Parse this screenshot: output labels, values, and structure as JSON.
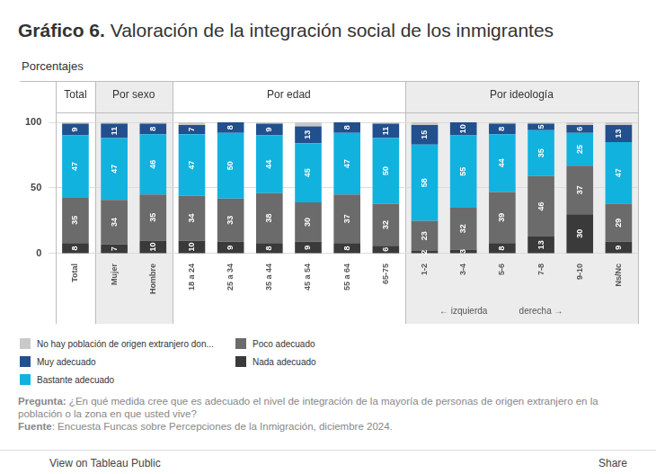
{
  "chart_data": {
    "type": "bar",
    "title": "Gráfico 6. Valoración de la integración social de los inmigrantes",
    "subtitle": "Porcentajes",
    "stacked": true,
    "data_labels": true,
    "grid": true,
    "legend": "bottom-left",
    "categories": [
      "Total",
      "Mujer",
      "Hombre",
      "18 a 24",
      "25 a 34",
      "35 a 44",
      "45 a 54",
      "55 a 64",
      "65-75",
      "1-2",
      "3-4",
      "5-6",
      "7-8",
      "9-10",
      "Ns/Nc"
    ],
    "groups": [
      {
        "name": "Total",
        "categories": [
          "Total"
        ]
      },
      {
        "name": "Por sexo",
        "categories": [
          "Mujer",
          "Hombre"
        ]
      },
      {
        "name": "Por edad",
        "categories": [
          "18 a 24",
          "25 a 34",
          "35 a 44",
          "45 a 54",
          "55 a 64",
          "65-75"
        ]
      },
      {
        "name": "Por ideología",
        "categories": [
          "1-2",
          "3-4",
          "5-6",
          "7-8",
          "9-10",
          "Ns/Nc"
        ]
      }
    ],
    "annotations": [
      {
        "text": "← izquierda",
        "category": "3-4"
      },
      {
        "text": "derecha →",
        "category": "7-8"
      }
    ],
    "series": [
      {
        "name": "Nada adecuado",
        "color": "#3a3a3a",
        "values": [
          8,
          7,
          10,
          10,
          9,
          8,
          9,
          8,
          6,
          2,
          3,
          8,
          13,
          30,
          9
        ]
      },
      {
        "name": "Poco adecuado",
        "color": "#6b6b6b",
        "values": [
          35,
          34,
          35,
          34,
          33,
          38,
          30,
          37,
          32,
          23,
          32,
          39,
          46,
          37,
          29
        ]
      },
      {
        "name": "Bastante adecuado",
        "color": "#12b2de",
        "values": [
          47,
          47,
          46,
          47,
          50,
          44,
          45,
          47,
          50,
          58,
          55,
          44,
          35,
          25,
          47
        ]
      },
      {
        "name": "Muy adecuado",
        "color": "#22508e",
        "values": [
          9,
          11,
          8,
          7,
          8,
          9,
          13,
          8,
          11,
          15,
          10,
          8,
          5,
          6,
          13
        ]
      },
      {
        "name": "No hay población de origen extranjero don...",
        "color": "#c9c9c9",
        "data_labels": false,
        "values": [
          1,
          1,
          1,
          2,
          0,
          1,
          3,
          0,
          1,
          2,
          0,
          1,
          1,
          2,
          2
        ]
      }
    ],
    "ylim": [
      0,
      100
    ],
    "yticks": [
      0,
      50,
      100
    ],
    "notes": [
      {
        "label": "Pregunta:",
        "text": "¿En qué medida cree que es adecuado el nivel de integración de la mayoría de personas de origen extranjero en la población o la zona en que usted vive?"
      },
      {
        "label": "Fuente",
        "text": ": Encuesta Funcas sobre Percepciones de la Inmigración, diciembre 2024."
      }
    ],
    "toolbar": [
      "View on Tableau Public",
      "Share"
    ]
  }
}
